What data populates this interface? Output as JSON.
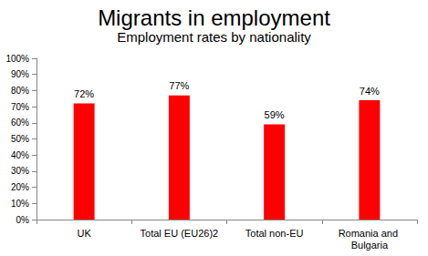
{
  "chart_data": {
    "type": "bar",
    "title": "Migrants in employment",
    "subtitle": "Employment rates by nationality",
    "categories": [
      "UK",
      "Total EU (EU26)2",
      "Total non-EU",
      "Romania and Bulgaria"
    ],
    "values": [
      72,
      77,
      59,
      74
    ],
    "value_labels": [
      "72%",
      "77%",
      "59%",
      "74%"
    ],
    "color": "#ff0000",
    "ylim": [
      0,
      100
    ],
    "yticks": [
      {
        "value": 0,
        "label": "0%"
      },
      {
        "value": 10,
        "label": "10%"
      },
      {
        "value": 20,
        "label": "20%"
      },
      {
        "value": 30,
        "label": "30%"
      },
      {
        "value": 40,
        "label": "40%"
      },
      {
        "value": 50,
        "label": "50%"
      },
      {
        "value": 60,
        "label": "60%"
      },
      {
        "value": 70,
        "label": "70%"
      },
      {
        "value": 80,
        "label": "80%"
      },
      {
        "value": 90,
        "label": "90%"
      },
      {
        "value": 100,
        "label": "100%"
      }
    ],
    "grid": false,
    "data_labels": true
  }
}
